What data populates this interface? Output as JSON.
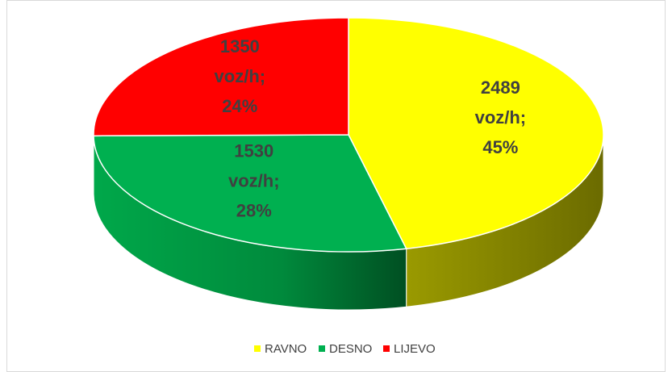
{
  "chart_data": {
    "type": "pie",
    "categories": [
      "RAVNO",
      "DESNO",
      "LIJEVO"
    ],
    "values": [
      2489,
      1530,
      1350
    ],
    "value_labels": [
      "2489 voz/h; 45%",
      "1530 voz/h; 28%",
      "1350 voz/h; 24%"
    ],
    "colors": [
      "#ffff00",
      "#00b050",
      "#ff0000"
    ],
    "legend": "bottom"
  }
}
